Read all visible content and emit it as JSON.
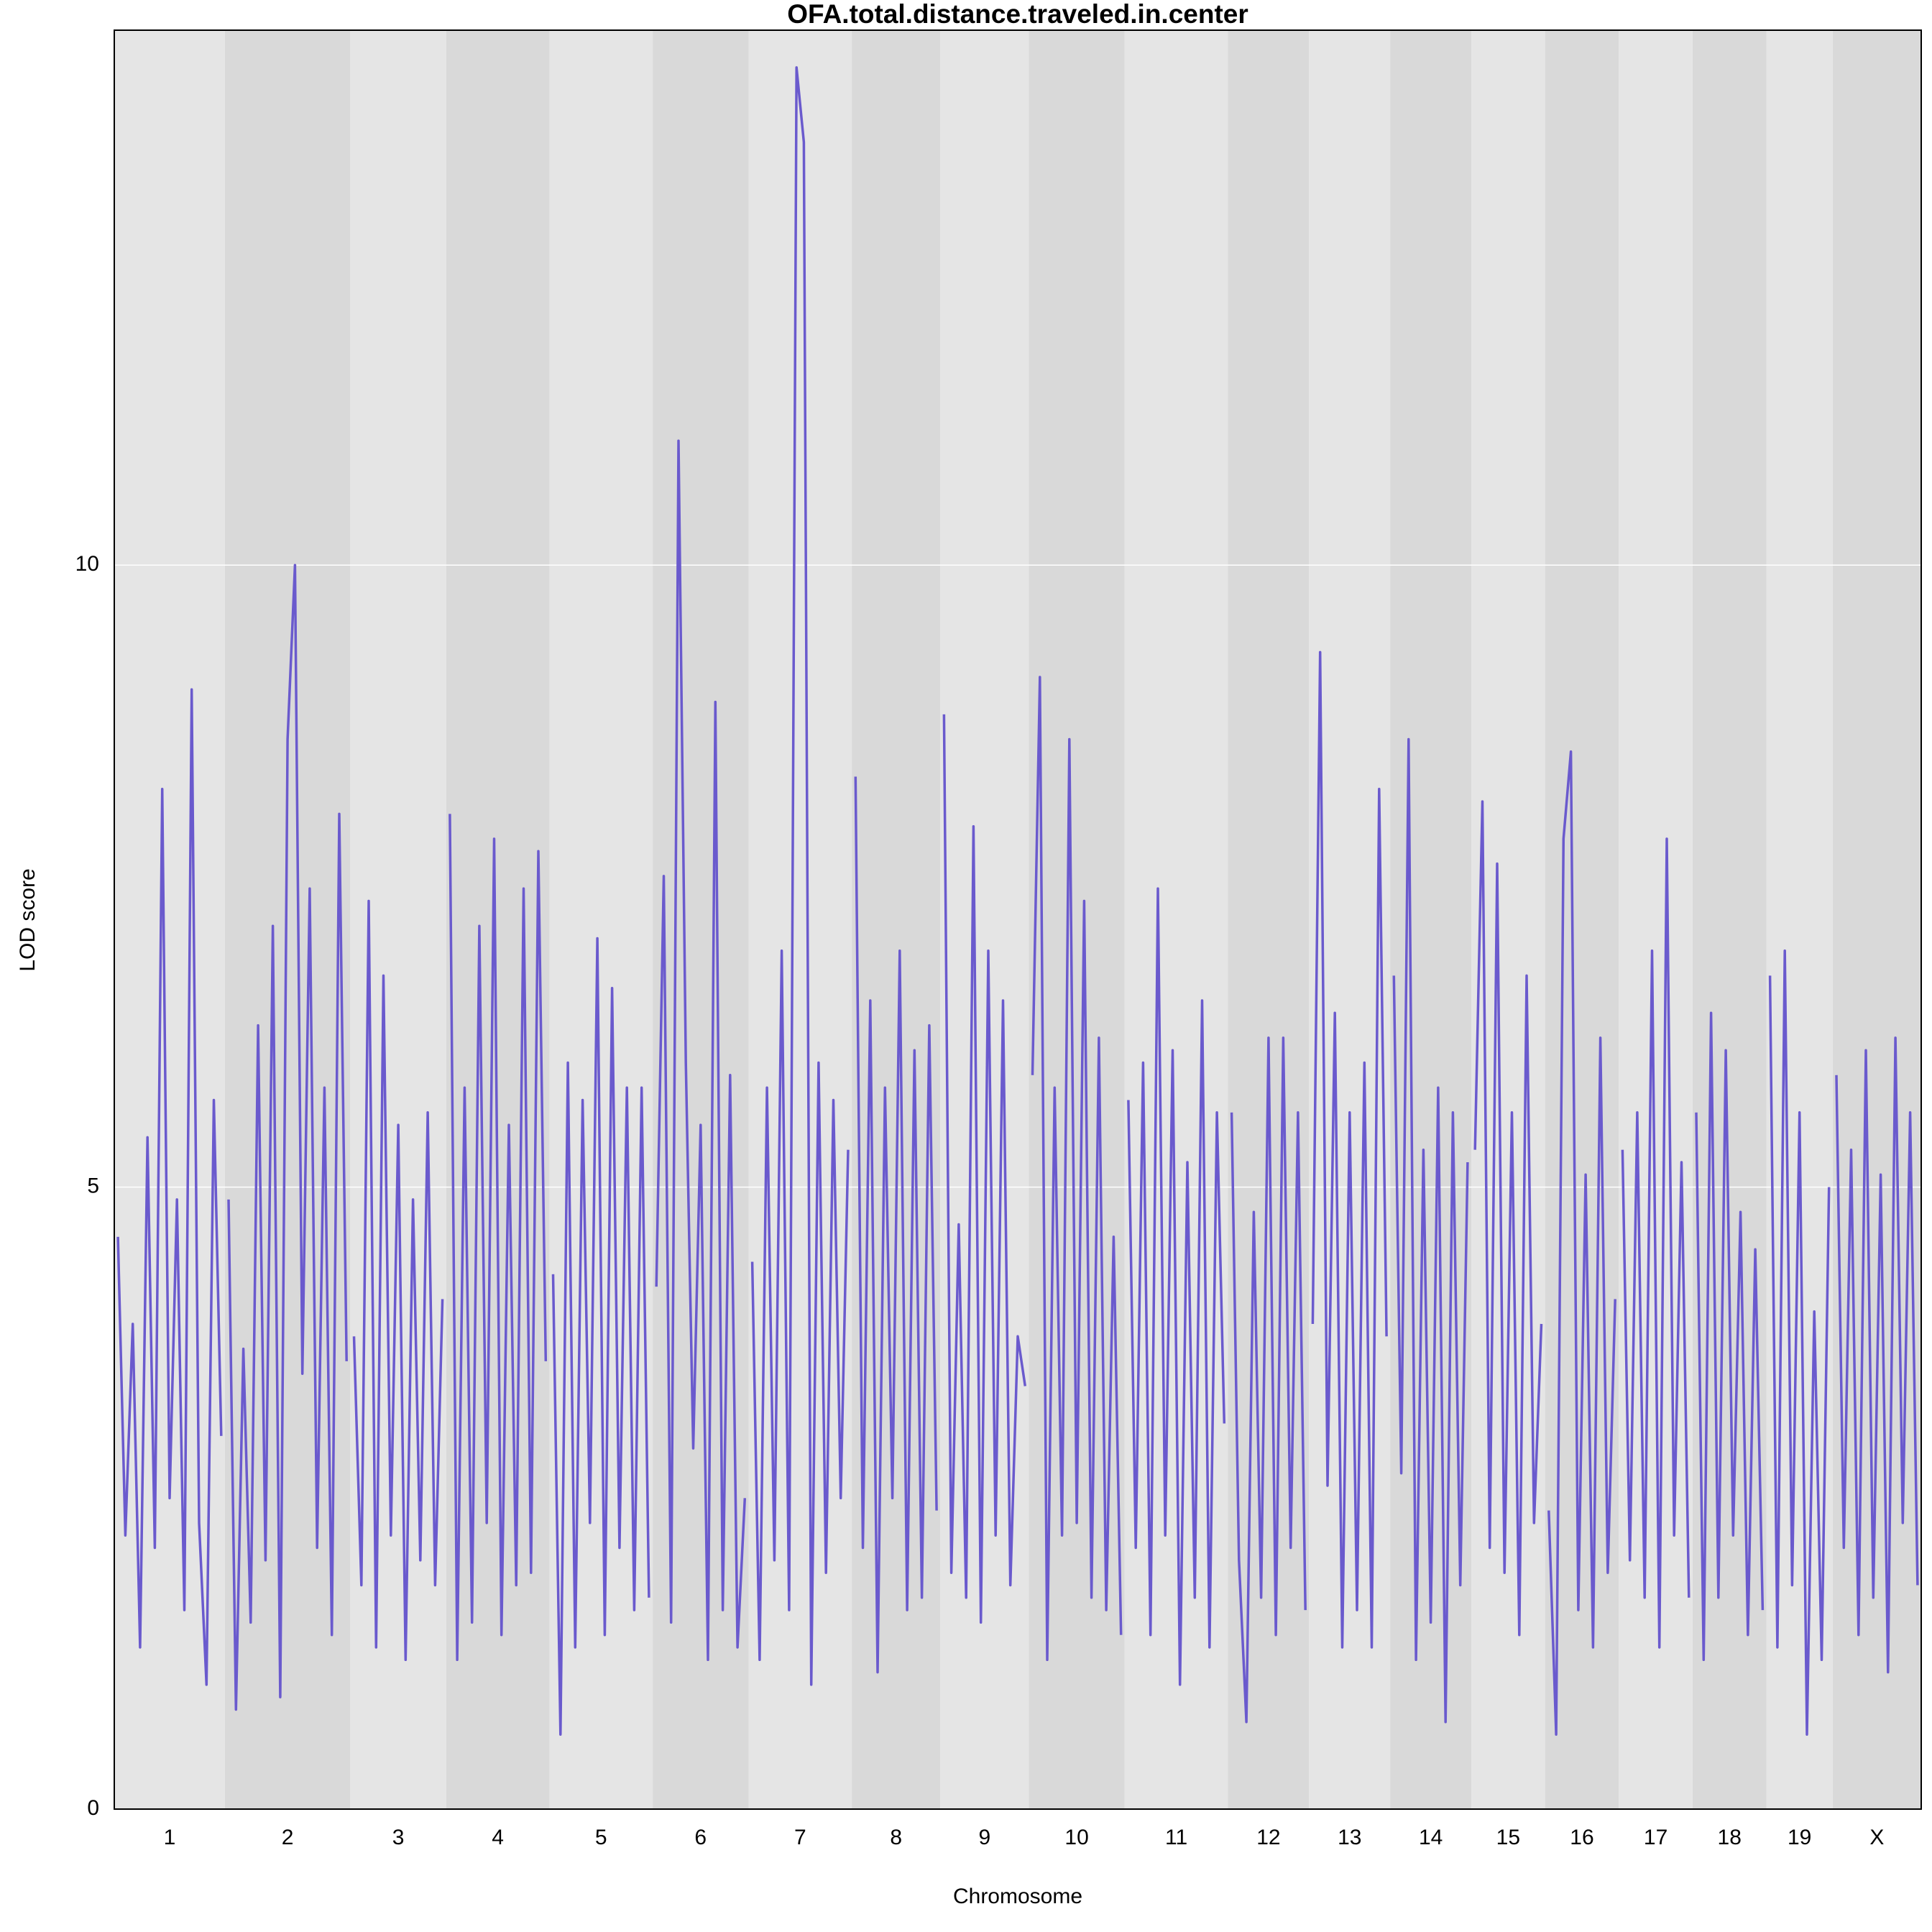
{
  "chart_data": {
    "type": "line",
    "title": "OFA.total.distance.traveled.in.center",
    "x_label": "Chromosome",
    "y_label": "LOD score",
    "ylim": [
      0,
      14.3
    ],
    "yticks": [
      0,
      5,
      10
    ],
    "grid": true,
    "series": [
      {
        "name": "1",
        "color": "#6a5acd",
        "values": [
          4.6,
          2.2,
          3.9,
          1.3,
          5.4,
          2.1,
          8.2,
          2.5,
          4.9,
          1.6,
          9.0,
          2.3,
          1.0,
          5.7,
          3.0
        ]
      },
      {
        "name": "2",
        "color": "#6a5acd",
        "values": [
          4.9,
          0.8,
          3.7,
          1.5,
          6.3,
          2.0,
          7.1,
          0.9,
          8.6,
          10.0,
          3.5,
          7.4,
          2.1,
          5.8,
          1.4,
          8.0,
          3.6
        ]
      },
      {
        "name": "3",
        "color": "#6a5acd",
        "values": [
          3.8,
          1.8,
          7.3,
          1.3,
          6.7,
          2.2,
          5.5,
          1.2,
          4.9,
          2.0,
          5.6,
          1.8,
          4.1
        ]
      },
      {
        "name": "4",
        "color": "#6a5acd",
        "values": [
          8.0,
          1.2,
          5.8,
          1.5,
          7.1,
          2.3,
          7.8,
          1.4,
          5.5,
          1.8,
          7.4,
          1.9,
          7.7,
          3.6
        ]
      },
      {
        "name": "5",
        "color": "#6a5acd",
        "values": [
          4.3,
          0.6,
          6.0,
          1.3,
          5.7,
          2.3,
          7.0,
          1.4,
          6.6,
          2.1,
          5.8,
          1.6,
          5.8,
          1.7
        ]
      },
      {
        "name": "6",
        "color": "#6a5acd",
        "values": [
          4.2,
          7.5,
          1.5,
          11.0,
          6.0,
          2.9,
          5.5,
          1.2,
          8.9,
          1.6,
          5.9,
          1.3,
          2.5
        ]
      },
      {
        "name": "7",
        "color": "#6a5acd",
        "values": [
          4.4,
          1.2,
          5.8,
          2.0,
          6.9,
          1.6,
          14.0,
          13.4,
          1.0,
          6.0,
          1.9,
          5.7,
          2.5,
          5.3
        ]
      },
      {
        "name": "8",
        "color": "#6a5acd",
        "values": [
          8.3,
          2.1,
          6.5,
          1.1,
          5.8,
          2.5,
          6.9,
          1.6,
          6.1,
          1.7,
          6.3,
          2.4
        ]
      },
      {
        "name": "9",
        "color": "#6a5acd",
        "values": [
          8.8,
          1.9,
          4.7,
          1.7,
          7.9,
          1.5,
          6.9,
          2.2,
          6.5,
          1.8,
          3.8,
          3.4
        ]
      },
      {
        "name": "10",
        "color": "#6a5acd",
        "values": [
          5.9,
          9.1,
          1.2,
          5.8,
          2.2,
          8.6,
          2.3,
          7.3,
          1.7,
          6.2,
          1.6,
          4.6,
          1.4
        ]
      },
      {
        "name": "11",
        "color": "#6a5acd",
        "values": [
          5.7,
          2.1,
          6.0,
          1.4,
          7.4,
          2.2,
          6.1,
          1.0,
          5.2,
          1.7,
          6.5,
          1.3,
          5.6,
          3.1
        ]
      },
      {
        "name": "12",
        "color": "#6a5acd",
        "values": [
          5.6,
          2.0,
          0.7,
          4.8,
          1.7,
          6.2,
          1.4,
          6.2,
          2.1,
          5.6,
          1.6
        ]
      },
      {
        "name": "13",
        "color": "#6a5acd",
        "values": [
          3.9,
          9.3,
          2.6,
          6.4,
          1.3,
          5.6,
          1.6,
          6.0,
          1.3,
          8.2,
          3.8
        ]
      },
      {
        "name": "14",
        "color": "#6a5acd",
        "values": [
          6.7,
          2.7,
          8.6,
          1.2,
          5.3,
          1.5,
          5.8,
          0.7,
          5.6,
          1.8,
          5.2
        ]
      },
      {
        "name": "15",
        "color": "#6a5acd",
        "values": [
          5.3,
          8.1,
          2.1,
          7.6,
          1.9,
          5.6,
          1.4,
          6.7,
          2.3,
          3.9
        ]
      },
      {
        "name": "16",
        "color": "#6a5acd",
        "values": [
          2.4,
          0.6,
          7.8,
          8.5,
          1.6,
          5.1,
          1.3,
          6.2,
          1.9,
          4.1
        ]
      },
      {
        "name": "17",
        "color": "#6a5acd",
        "values": [
          5.3,
          2.0,
          5.6,
          1.7,
          6.9,
          1.3,
          7.8,
          2.2,
          5.2,
          1.7
        ]
      },
      {
        "name": "18",
        "color": "#6a5acd",
        "values": [
          5.6,
          1.2,
          6.4,
          1.7,
          6.1,
          2.2,
          4.8,
          1.4,
          4.5,
          1.6
        ]
      },
      {
        "name": "19",
        "color": "#6a5acd",
        "values": [
          6.7,
          1.3,
          6.9,
          1.8,
          5.6,
          0.6,
          4.0,
          1.2,
          5.0
        ]
      },
      {
        "name": "X",
        "color": "#6a5acd",
        "values": [
          5.9,
          2.1,
          5.3,
          1.4,
          6.1,
          1.7,
          5.1,
          1.1,
          6.2,
          2.3,
          5.6,
          1.8
        ]
      }
    ]
  }
}
